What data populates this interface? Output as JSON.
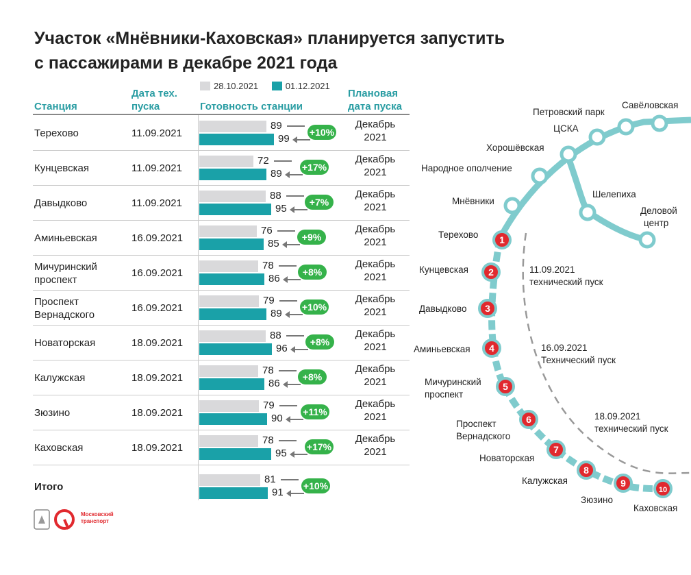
{
  "title_line1": "Участок «Мнёвники-Каховская» планируется запустить",
  "title_line2": "с пассажирами в декабре 2021 года",
  "headers": {
    "station": "Станция",
    "tech_date": [
      "Дата тех.",
      "пуска"
    ],
    "readiness": "Готовность станции",
    "plan_date": [
      "Плановая",
      "дата пуска"
    ]
  },
  "legend": {
    "series_a": "28.10.2021",
    "series_b": "01.12.2021",
    "color_a": "#d9d9db",
    "color_b": "#1aa1a8"
  },
  "chart_data": {
    "type": "bar",
    "xlim": [
      0,
      100
    ],
    "categories": [
      "Терехово",
      "Кунцевская",
      "Давыдково",
      "Аминьевская",
      "Мичуринский проспект",
      "Проспект Вернадского",
      "Новаторская",
      "Калужская",
      "Зюзино",
      "Каховская",
      "Итого"
    ],
    "series": [
      {
        "name": "28.10.2021",
        "values": [
          89,
          72,
          88,
          76,
          78,
          79,
          88,
          78,
          79,
          78,
          81
        ]
      },
      {
        "name": "01.12.2021",
        "values": [
          99,
          89,
          95,
          85,
          86,
          89,
          96,
          86,
          90,
          95,
          91
        ]
      }
    ],
    "deltas": [
      "+10%",
      "+17%",
      "+7%",
      "+9%",
      "+8%",
      "+10%",
      "+8%",
      "+8%",
      "+11%",
      "+17%",
      "+10%"
    ]
  },
  "rows": [
    {
      "station": [
        "Терехово"
      ],
      "tech_date": "11.09.2021",
      "plan": [
        "Декабрь",
        "2021"
      ]
    },
    {
      "station": [
        "Кунцевская"
      ],
      "tech_date": "11.09.2021",
      "plan": [
        "Декабрь",
        "2021"
      ]
    },
    {
      "station": [
        "Давыдково"
      ],
      "tech_date": "11.09.2021",
      "plan": [
        "Декабрь",
        "2021"
      ]
    },
    {
      "station": [
        "Аминьевская"
      ],
      "tech_date": "16.09.2021",
      "plan": [
        "Декабрь",
        "2021"
      ]
    },
    {
      "station": [
        "Мичуринский",
        "проспект"
      ],
      "tech_date": "16.09.2021",
      "plan": [
        "Декабрь",
        "2021"
      ]
    },
    {
      "station": [
        "Проспект",
        "Вернадского"
      ],
      "tech_date": "16.09.2021",
      "plan": [
        "Декабрь",
        "2021"
      ]
    },
    {
      "station": [
        "Новаторская"
      ],
      "tech_date": "18.09.2021",
      "plan": [
        "Декабрь",
        "2021"
      ]
    },
    {
      "station": [
        "Калужская"
      ],
      "tech_date": "18.09.2021",
      "plan": [
        "Декабрь",
        "2021"
      ]
    },
    {
      "station": [
        "Зюзино"
      ],
      "tech_date": "18.09.2021",
      "plan": [
        "Декабрь",
        "2021"
      ]
    },
    {
      "station": [
        "Каховская"
      ],
      "tech_date": "18.09.2021",
      "plan": [
        "Декабрь",
        "2021"
      ]
    },
    {
      "station": [
        "Итого"
      ],
      "tech_date": "",
      "plan": [
        "",
        ""
      ]
    }
  ],
  "logo": {
    "text_line1": "Московский",
    "text_line2": "транспорт",
    "color": "#e1292e"
  },
  "map": {
    "line_color": "#7fcbcd",
    "station_red": "#e1292e",
    "existing_stations": [
      "Савёловская",
      "Петровский парк",
      "ЦСКА",
      "Хорошёвская",
      "Народное ополчение",
      "Мнёвники",
      "Шелепиха",
      "Деловой",
      "центр"
    ],
    "new_stations": [
      {
        "num": "1",
        "name": [
          "Терехово"
        ]
      },
      {
        "num": "2",
        "name": [
          "Кунцевская"
        ]
      },
      {
        "num": "3",
        "name": [
          "Давыдково"
        ]
      },
      {
        "num": "4",
        "name": [
          "Аминьевская"
        ]
      },
      {
        "num": "5",
        "name": [
          "Мичуринский",
          "проспект"
        ]
      },
      {
        "num": "6",
        "name": [
          "Проспект",
          "Вернадского"
        ]
      },
      {
        "num": "7",
        "name": [
          "Новаторская"
        ]
      },
      {
        "num": "8",
        "name": [
          "Калужская"
        ]
      },
      {
        "num": "9",
        "name": [
          "Зюзино"
        ]
      },
      {
        "num": "10",
        "name": [
          "Каховская"
        ]
      }
    ],
    "notes": [
      {
        "date": "11.09.2021",
        "text": "технический пуск"
      },
      {
        "date": "16.09.2021",
        "text": "Технический пуск"
      },
      {
        "date": "18.09.2021",
        "text": "технический пуск"
      }
    ]
  }
}
